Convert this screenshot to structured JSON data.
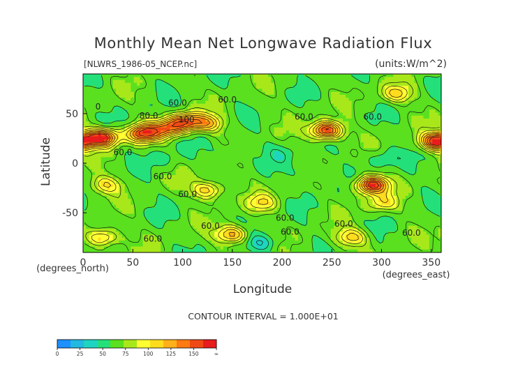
{
  "chart_data": {
    "type": "heatmap",
    "title": "Monthly Mean Net Longwave Radiation Flux",
    "file_label": "[NLWRS_1986-05_NCEP.nc]",
    "units_label": "(units:W/m^2)",
    "xlabel": "Longitude",
    "ylabel": "Latitude",
    "x_unit_label": "(degrees_east)",
    "y_unit_label": "(degrees_north)",
    "xlim": [
      0,
      360
    ],
    "ylim": [
      -90,
      90
    ],
    "x_ticks": [
      0,
      50,
      100,
      150,
      200,
      250,
      300,
      350
    ],
    "y_ticks": [
      50,
      0,
      -50
    ],
    "contour_interval_text": "CONTOUR INTERVAL = 1.000E+01",
    "contour_labels": [
      {
        "text": "60.0",
        "lon": 95,
        "lat": 58
      },
      {
        "text": "60.0",
        "lon": 145,
        "lat": 61
      },
      {
        "text": "60.0",
        "lon": 222,
        "lat": 44
      },
      {
        "text": "60.0",
        "lon": 291,
        "lat": 44
      },
      {
        "text": "80.0",
        "lon": 66,
        "lat": 45
      },
      {
        "text": "100",
        "lon": 104,
        "lat": 41
      },
      {
        "text": "60.0",
        "lon": 40,
        "lat": 8
      },
      {
        "text": "60.0",
        "lon": 80,
        "lat": -16
      },
      {
        "text": "60.0",
        "lon": 105,
        "lat": -34
      },
      {
        "text": "60.0",
        "lon": 203,
        "lat": -58
      },
      {
        "text": "60.0",
        "lon": 262,
        "lat": -64
      },
      {
        "text": "60.0",
        "lon": 128,
        "lat": -66
      },
      {
        "text": "60.0",
        "lon": 70,
        "lat": -79
      },
      {
        "text": "60.0",
        "lon": 208,
        "lat": -72
      },
      {
        "text": "60.0",
        "lon": 330,
        "lat": -73
      },
      {
        "text": "0",
        "lon": 15,
        "lat": 54
      }
    ],
    "colorbar": {
      "ticks": [
        "0",
        "25",
        "50",
        "75",
        "100",
        "125",
        "150",
        "∞"
      ],
      "colors": [
        "#1e90ff",
        "#22b8e0",
        "#1fd4c0",
        "#24e07a",
        "#5ae01e",
        "#a8e81a",
        "#ffff33",
        "#ffdc1e",
        "#ffb01a",
        "#ff7a12",
        "#f04a14",
        "#e81c1c"
      ]
    },
    "features": [
      {
        "lon": 20,
        "lat": 26,
        "value": 140
      },
      {
        "lon": 60,
        "lat": 30,
        "value": 130
      },
      {
        "lon": 85,
        "lat": 35,
        "value": 110
      },
      {
        "lon": 103,
        "lat": 42,
        "value": 120
      },
      {
        "lon": 125,
        "lat": 40,
        "value": 100
      },
      {
        "lon": 245,
        "lat": 33,
        "value": 140
      },
      {
        "lon": 355,
        "lat": 22,
        "value": 140
      },
      {
        "lon": 290,
        "lat": -22,
        "value": 140
      },
      {
        "lon": 22,
        "lat": -22,
        "value": 90
      },
      {
        "lon": 125,
        "lat": -27,
        "value": 100
      },
      {
        "lon": 180,
        "lat": -40,
        "value": 85
      },
      {
        "lon": 300,
        "lat": -40,
        "value": 85
      },
      {
        "lon": 315,
        "lat": 70,
        "value": 95
      },
      {
        "lon": 150,
        "lat": 10,
        "value": 40
      },
      {
        "lon": 200,
        "lat": 10,
        "value": 45
      },
      {
        "lon": 230,
        "lat": -10,
        "value": 40
      },
      {
        "lon": 300,
        "lat": 5,
        "value": 40
      },
      {
        "lon": 80,
        "lat": 5,
        "value": 45
      },
      {
        "lon": 180,
        "lat": -80,
        "value": 30
      },
      {
        "lon": 20,
        "lat": -75,
        "value": 100
      },
      {
        "lon": 150,
        "lat": -72,
        "value": 110
      },
      {
        "lon": 270,
        "lat": -75,
        "value": 95
      }
    ]
  }
}
